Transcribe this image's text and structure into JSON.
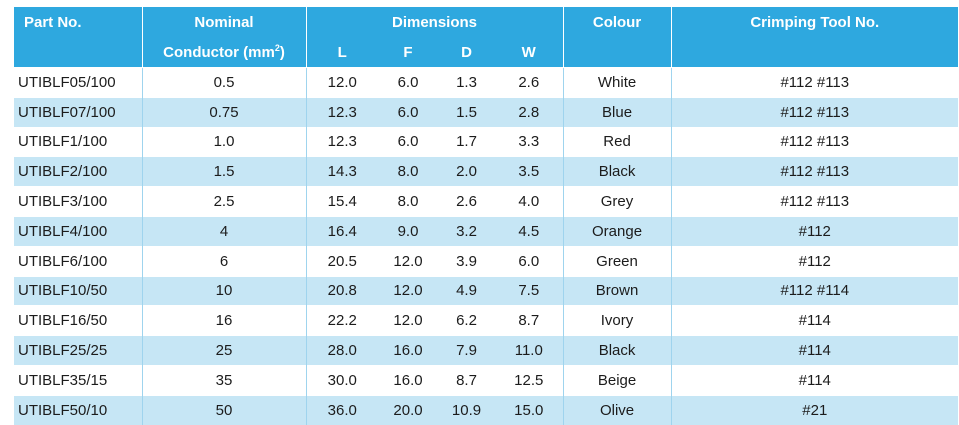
{
  "header": {
    "part_no": "Part No.",
    "nominal_line1": "Nominal",
    "nominal_line2": "Conductor (mm",
    "nominal_sup": "2",
    "nominal_close": ")",
    "dimensions": "Dimensions",
    "dim_l": "L",
    "dim_f": "F",
    "dim_d": "D",
    "dim_w": "W",
    "colour": "Colour",
    "crimping_tool": "Crimping Tool No."
  },
  "rows": [
    {
      "part": "UTIBLF05/100",
      "nominal": "0.5",
      "l": "12.0",
      "f": "6.0",
      "d": "1.3",
      "w": "2.6",
      "colour": "White",
      "tool": "#112  #113"
    },
    {
      "part": "UTIBLF07/100",
      "nominal": "0.75",
      "l": "12.3",
      "f": "6.0",
      "d": "1.5",
      "w": "2.8",
      "colour": "Blue",
      "tool": "#112  #113"
    },
    {
      "part": "UTIBLF1/100",
      "nominal": "1.0",
      "l": "12.3",
      "f": "6.0",
      "d": "1.7",
      "w": "3.3",
      "colour": "Red",
      "tool": "#112  #113"
    },
    {
      "part": "UTIBLF2/100",
      "nominal": "1.5",
      "l": "14.3",
      "f": "8.0",
      "d": "2.0",
      "w": "3.5",
      "colour": "Black",
      "tool": "#112  #113"
    },
    {
      "part": "UTIBLF3/100",
      "nominal": "2.5",
      "l": "15.4",
      "f": "8.0",
      "d": "2.6",
      "w": "4.0",
      "colour": "Grey",
      "tool": "#112  #113"
    },
    {
      "part": "UTIBLF4/100",
      "nominal": "4",
      "l": "16.4",
      "f": "9.0",
      "d": "3.2",
      "w": "4.5",
      "colour": "Orange",
      "tool": "#112"
    },
    {
      "part": "UTIBLF6/100",
      "nominal": "6",
      "l": "20.5",
      "f": "12.0",
      "d": "3.9",
      "w": "6.0",
      "colour": "Green",
      "tool": "#112"
    },
    {
      "part": "UTIBLF10/50",
      "nominal": "10",
      "l": "20.8",
      "f": "12.0",
      "d": "4.9",
      "w": "7.5",
      "colour": "Brown",
      "tool": "#112  #114"
    },
    {
      "part": "UTIBLF16/50",
      "nominal": "16",
      "l": "22.2",
      "f": "12.0",
      "d": "6.2",
      "w": "8.7",
      "colour": "Ivory",
      "tool": "#114"
    },
    {
      "part": "UTIBLF25/25",
      "nominal": "25",
      "l": "28.0",
      "f": "16.0",
      "d": "7.9",
      "w": "11.0",
      "colour": "Black",
      "tool": "#114"
    },
    {
      "part": "UTIBLF35/15",
      "nominal": "35",
      "l": "30.0",
      "f": "16.0",
      "d": "8.7",
      "w": "12.5",
      "colour": "Beige",
      "tool": "#114"
    },
    {
      "part": "UTIBLF50/10",
      "nominal": "50",
      "l": "36.0",
      "f": "20.0",
      "d": "10.9",
      "w": "15.0",
      "colour": "Olive",
      "tool": "#21"
    }
  ],
  "colors": {
    "header_bg": "#2ea8df",
    "stripe_bg": "#c6e6f5"
  }
}
